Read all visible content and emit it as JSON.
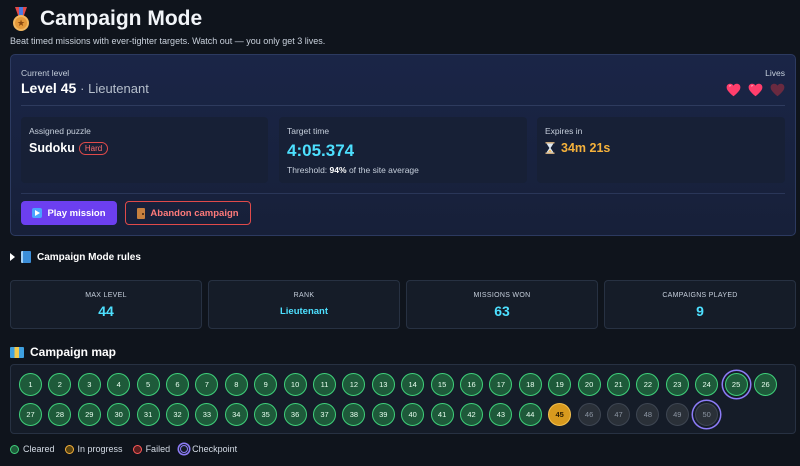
{
  "header": {
    "title": "Campaign Mode",
    "subtitle": "Beat timed missions with ever-tighter targets. Watch out — you only get 3 lives."
  },
  "level": {
    "label": "Current level",
    "value": "Level 45",
    "rank": "· Lieutenant"
  },
  "lives": {
    "label": "Lives",
    "total": 3,
    "remaining": 2
  },
  "puzzle": {
    "label": "Assigned puzzle",
    "name": "Sudoku",
    "difficulty": "Hard"
  },
  "target": {
    "label": "Target time",
    "time": "4:05.374",
    "threshold_prefix": "Threshold:",
    "threshold_value": "94%",
    "threshold_suffix": "of the site average"
  },
  "expires": {
    "label": "Expires in",
    "value": "34m 21s"
  },
  "buttons": {
    "play": "Play mission",
    "abandon": "Abandon campaign"
  },
  "rules": {
    "label": "Campaign Mode rules"
  },
  "stats": [
    {
      "label": "MAX LEVEL",
      "value": "44"
    },
    {
      "label": "RANK",
      "value": "Lieutenant"
    },
    {
      "label": "MISSIONS WON",
      "value": "63"
    },
    {
      "label": "CAMPAIGNS PLAYED",
      "value": "9"
    }
  ],
  "map": {
    "title": "Campaign map",
    "nodes": [
      {
        "n": "1",
        "s": "cleared"
      },
      {
        "n": "2",
        "s": "cleared"
      },
      {
        "n": "3",
        "s": "cleared"
      },
      {
        "n": "4",
        "s": "cleared"
      },
      {
        "n": "5",
        "s": "cleared"
      },
      {
        "n": "6",
        "s": "cleared"
      },
      {
        "n": "7",
        "s": "cleared"
      },
      {
        "n": "8",
        "s": "cleared"
      },
      {
        "n": "9",
        "s": "cleared"
      },
      {
        "n": "10",
        "s": "cleared"
      },
      {
        "n": "11",
        "s": "cleared"
      },
      {
        "n": "12",
        "s": "cleared"
      },
      {
        "n": "13",
        "s": "cleared"
      },
      {
        "n": "14",
        "s": "cleared"
      },
      {
        "n": "15",
        "s": "cleared"
      },
      {
        "n": "16",
        "s": "cleared"
      },
      {
        "n": "17",
        "s": "cleared"
      },
      {
        "n": "18",
        "s": "cleared"
      },
      {
        "n": "19",
        "s": "cleared"
      },
      {
        "n": "20",
        "s": "cleared"
      },
      {
        "n": "21",
        "s": "cleared"
      },
      {
        "n": "22",
        "s": "cleared"
      },
      {
        "n": "23",
        "s": "cleared"
      },
      {
        "n": "24",
        "s": "cleared"
      },
      {
        "n": "25",
        "s": "cleared",
        "checkpoint": true
      },
      {
        "n": "26",
        "s": "cleared"
      },
      {
        "n": "27",
        "s": "cleared"
      },
      {
        "n": "28",
        "s": "cleared"
      },
      {
        "n": "29",
        "s": "cleared"
      },
      {
        "n": "30",
        "s": "cleared"
      },
      {
        "n": "31",
        "s": "cleared"
      },
      {
        "n": "32",
        "s": "cleared"
      },
      {
        "n": "33",
        "s": "cleared"
      },
      {
        "n": "34",
        "s": "cleared"
      },
      {
        "n": "35",
        "s": "cleared"
      },
      {
        "n": "36",
        "s": "cleared"
      },
      {
        "n": "37",
        "s": "cleared"
      },
      {
        "n": "38",
        "s": "cleared"
      },
      {
        "n": "39",
        "s": "cleared"
      },
      {
        "n": "40",
        "s": "cleared"
      },
      {
        "n": "41",
        "s": "cleared"
      },
      {
        "n": "42",
        "s": "cleared"
      },
      {
        "n": "43",
        "s": "cleared"
      },
      {
        "n": "44",
        "s": "cleared"
      },
      {
        "n": "45",
        "s": "current"
      },
      {
        "n": "46",
        "s": "locked"
      },
      {
        "n": "47",
        "s": "locked"
      },
      {
        "n": "48",
        "s": "locked"
      },
      {
        "n": "49",
        "s": "locked"
      },
      {
        "n": "50",
        "s": "locked",
        "checkpoint": true
      }
    ]
  },
  "legend": {
    "cleared": "Cleared",
    "progress": "In progress",
    "failed": "Failed",
    "checkpoint": "Checkpoint"
  },
  "colors": {
    "accent": "#6c3ff0",
    "cyan": "#4de0ff",
    "cleared": "#3fd07a",
    "current": "#f5b13b",
    "danger": "#e04a4a",
    "checkpoint": "#8d7cf7"
  }
}
